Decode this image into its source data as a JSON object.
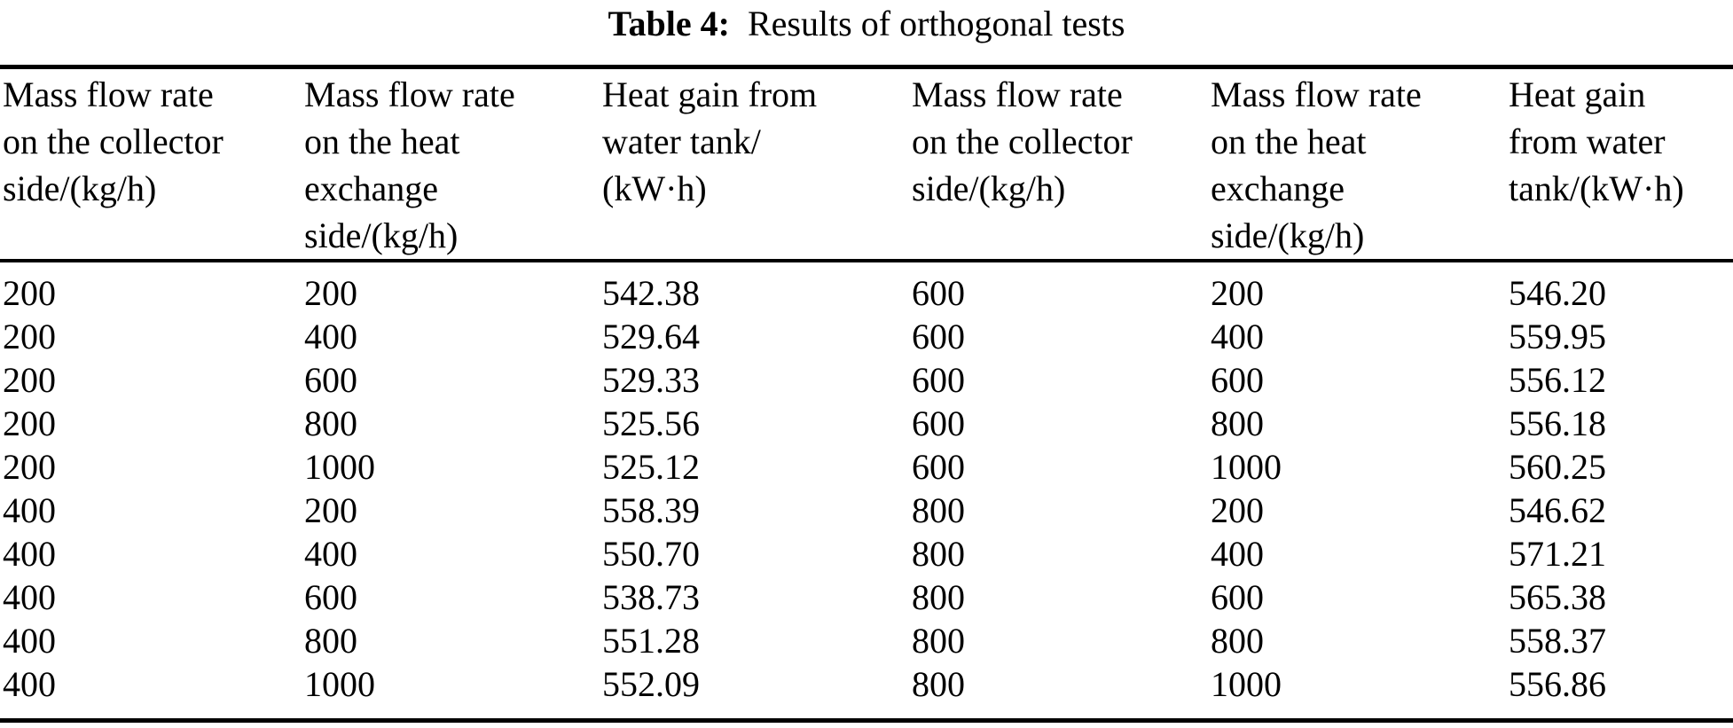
{
  "page": {
    "background": "#ffffff",
    "text_color": "#000000"
  },
  "caption": {
    "label": "Table 4:",
    "title": "Results of orthogonal tests"
  },
  "table": {
    "headers": [
      [
        "Mass flow rate",
        "on the collector",
        "side/(kg/h)"
      ],
      [
        "Mass flow rate",
        "on the heat",
        "exchange",
        "side/(kg/h)"
      ],
      [
        "Heat gain from",
        "water tank/",
        "(kW·h)"
      ],
      [
        "Mass flow rate",
        "on the collector",
        "side/(kg/h)"
      ],
      [
        "Mass flow rate",
        "on the heat",
        "exchange",
        "side/(kg/h)"
      ],
      [
        "Heat gain",
        "from water",
        "tank/(kW·h)"
      ]
    ],
    "rows": [
      [
        "200",
        "200",
        "542.38",
        "600",
        "200",
        "546.20"
      ],
      [
        "200",
        "400",
        "529.64",
        "600",
        "400",
        "559.95"
      ],
      [
        "200",
        "600",
        "529.33",
        "600",
        "600",
        "556.12"
      ],
      [
        "200",
        "800",
        "525.56",
        "600",
        "800",
        "556.18"
      ],
      [
        "200",
        "1000",
        "525.12",
        "600",
        "1000",
        "560.25"
      ],
      [
        "400",
        "200",
        "558.39",
        "800",
        "200",
        "546.62"
      ],
      [
        "400",
        "400",
        "550.70",
        "800",
        "400",
        "571.21"
      ],
      [
        "400",
        "600",
        "538.73",
        "800",
        "600",
        "565.38"
      ],
      [
        "400",
        "800",
        "551.28",
        "800",
        "800",
        "558.37"
      ],
      [
        "400",
        "1000",
        "552.09",
        "800",
        "1000",
        "556.86"
      ]
    ]
  }
}
